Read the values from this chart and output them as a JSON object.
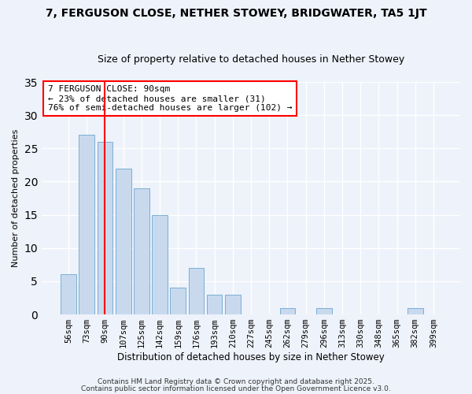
{
  "title": "7, FERGUSON CLOSE, NETHER STOWEY, BRIDGWATER, TA5 1JT",
  "subtitle": "Size of property relative to detached houses in Nether Stowey",
  "xlabel": "Distribution of detached houses by size in Nether Stowey",
  "ylabel": "Number of detached properties",
  "bar_labels": [
    "56sqm",
    "73sqm",
    "90sqm",
    "107sqm",
    "125sqm",
    "142sqm",
    "159sqm",
    "176sqm",
    "193sqm",
    "210sqm",
    "227sqm",
    "245sqm",
    "262sqm",
    "279sqm",
    "296sqm",
    "313sqm",
    "330sqm",
    "348sqm",
    "365sqm",
    "382sqm",
    "399sqm"
  ],
  "bar_values": [
    6,
    27,
    26,
    22,
    19,
    15,
    4,
    7,
    3,
    3,
    0,
    0,
    1,
    0,
    1,
    0,
    0,
    0,
    0,
    1,
    0
  ],
  "bar_color": "#c8d9ee",
  "bar_edge_color": "#7aafd4",
  "vline_x": 2,
  "vline_color": "red",
  "ylim": [
    0,
    35
  ],
  "yticks": [
    0,
    5,
    10,
    15,
    20,
    25,
    30,
    35
  ],
  "annotation_title": "7 FERGUSON CLOSE: 90sqm",
  "annotation_line1": "← 23% of detached houses are smaller (31)",
  "annotation_line2": "76% of semi-detached houses are larger (102) →",
  "annotation_box_color": "white",
  "annotation_box_edge": "red",
  "background_color": "#eef2fa",
  "footer1": "Contains HM Land Registry data © Crown copyright and database right 2025.",
  "footer2": "Contains public sector information licensed under the Open Government Licence v3.0.",
  "title_fontsize": 10,
  "subtitle_fontsize": 9,
  "footer_fontsize": 6.5,
  "ylabel_fontsize": 8,
  "xlabel_fontsize": 8.5,
  "tick_fontsize": 7.5,
  "ann_fontsize": 8
}
